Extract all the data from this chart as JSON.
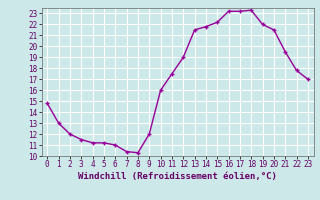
{
  "x": [
    0,
    1,
    2,
    3,
    4,
    5,
    6,
    7,
    8,
    9,
    10,
    11,
    12,
    13,
    14,
    15,
    16,
    17,
    18,
    19,
    20,
    21,
    22,
    23
  ],
  "y": [
    14.8,
    13.0,
    12.0,
    11.5,
    11.2,
    11.2,
    11.0,
    10.4,
    10.3,
    12.0,
    16.0,
    17.5,
    19.0,
    21.5,
    21.8,
    22.2,
    23.2,
    23.2,
    23.3,
    22.0,
    21.5,
    19.5,
    17.8,
    17.0
  ],
  "line_color": "#990099",
  "marker": "+",
  "bg_color": "#cce8e8",
  "grid_color": "#ffffff",
  "xlabel": "Windchill (Refroidissement éolien,°C)",
  "xlim": [
    -0.5,
    23.5
  ],
  "ylim": [
    10,
    23.5
  ],
  "yticks": [
    10,
    11,
    12,
    13,
    14,
    15,
    16,
    17,
    18,
    19,
    20,
    21,
    22,
    23
  ],
  "xticks": [
    0,
    1,
    2,
    3,
    4,
    5,
    6,
    7,
    8,
    9,
    10,
    11,
    12,
    13,
    14,
    15,
    16,
    17,
    18,
    19,
    20,
    21,
    22,
    23
  ],
  "tick_fontsize": 5.5,
  "xlabel_fontsize": 6.5,
  "linewidth": 1.0,
  "markersize": 3.5
}
